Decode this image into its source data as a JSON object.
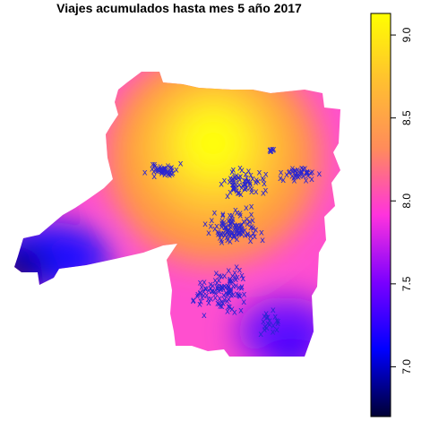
{
  "title": "Viajes acumulados hasta mes 5 año 2017",
  "legend": {
    "min": 6.7,
    "max": 9.13,
    "ticks": [
      7.0,
      7.5,
      8.0,
      8.5,
      9.0
    ],
    "tick_labels": [
      "7.0",
      "7.5",
      "8.0",
      "8.5",
      "9.0"
    ]
  },
  "colors": {
    "scale": [
      "#000033",
      "#0000ff",
      "#7b00ff",
      "#ff33dd",
      "#ff8c5a",
      "#ffc030",
      "#ffff00"
    ],
    "marker": "#2a25d0"
  },
  "marker_symbol": "x"
}
